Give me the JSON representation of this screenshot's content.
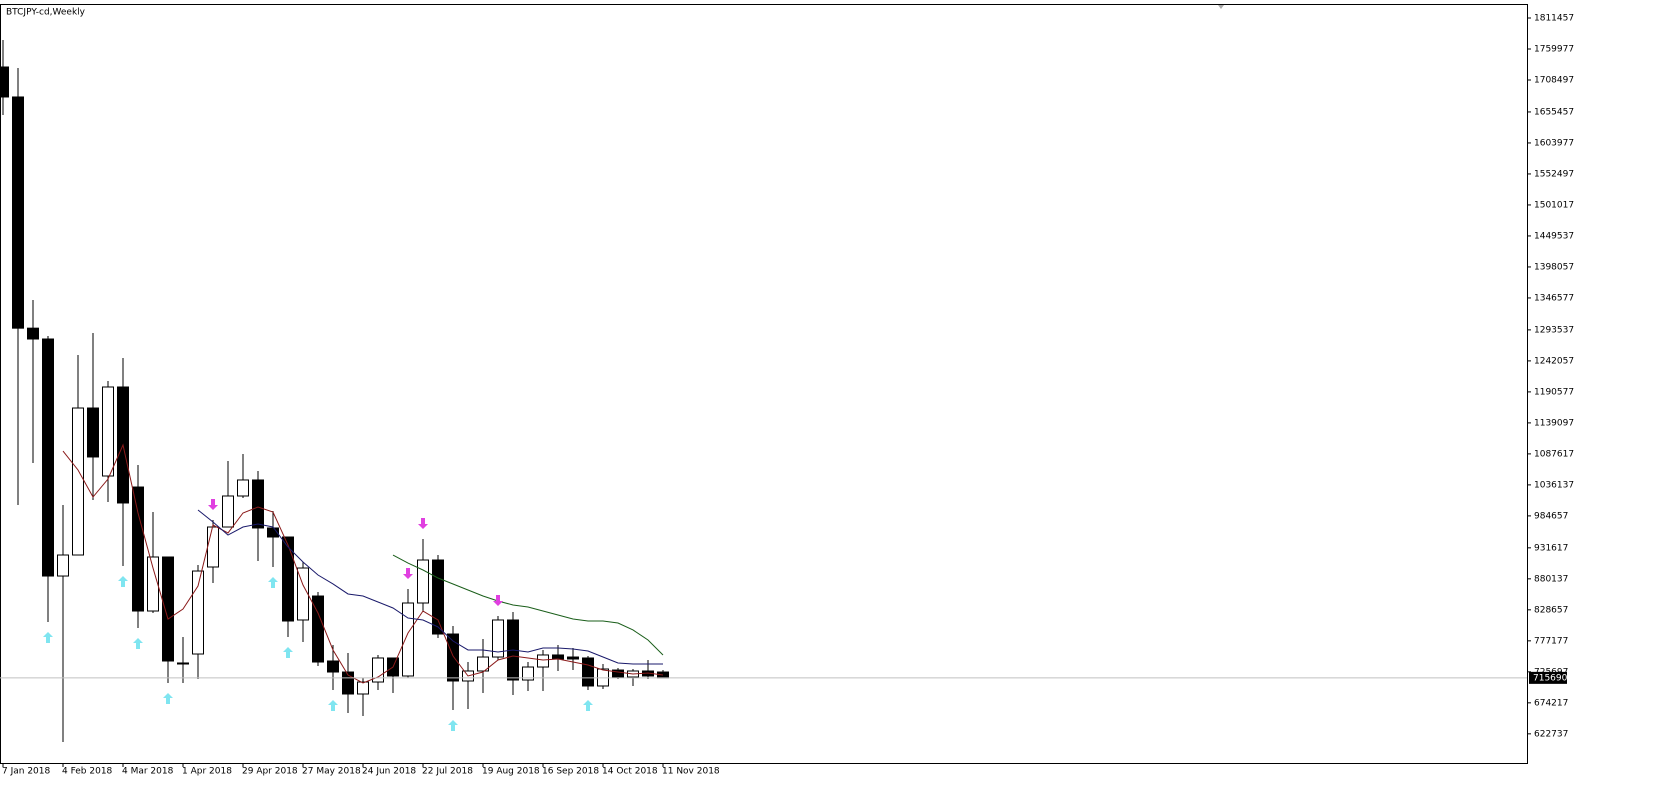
{
  "chart_data": {
    "type": "candlestick",
    "title": "BTCJPY-cd,Weekly",
    "categories": [
      "7 Jan 2018",
      null,
      null,
      null,
      "4 Feb 2018",
      null,
      null,
      null,
      "4 Mar 2018",
      null,
      null,
      null,
      "1 Apr 2018",
      null,
      null,
      null,
      "29 Apr 2018",
      null,
      null,
      null,
      "27 May 2018",
      null,
      null,
      null,
      "24 Jun 2018",
      null,
      null,
      null,
      "22 Jul 2018",
      null,
      null,
      null,
      "19 Aug 2018",
      null,
      null,
      null,
      "16 Sep 2018",
      null,
      null,
      null,
      "14 Oct 2018",
      null,
      null,
      null,
      "11 Nov 2018"
    ],
    "open": [
      1730100,
      1680300,
      1296400,
      1278400,
      884800,
      919700,
      1163800,
      1050900,
      1198700,
      1032600,
      826700,
      916400,
      740400,
      755300,
      899800,
      966200,
      1017700,
      1044300,
      964600,
      949600,
      811800,
      851600,
      743700,
      725400,
      688900,
      708800,
      748700,
      718800,
      840000,
      911400,
      788500,
      710500,
      727100,
      750300,
      811800,
      712100,
      733700,
      753700,
      750300,
      748700,
      702200,
      728700,
      717100,
      727100,
      725400
    ],
    "high": [
      1774900,
      1728400,
      1343200,
      1283400,
      1002700,
      1251800,
      1288400,
      1208700,
      1246900,
      1069200,
      991100,
      916400,
      783500,
      903100,
      977800,
      1075800,
      1087400,
      1059200,
      992800,
      949600,
      908100,
      858300,
      770300,
      757000,
      715500,
      753700,
      748700,
      863300,
      946300,
      919700,
      801800,
      742000,
      780200,
      818400,
      825100,
      742000,
      762000,
      770300,
      765300,
      752000,
      738700,
      732100,
      730400,
      745400,
      728700
    ],
    "low": [
      1650400,
      1002700,
      1072500,
      808500,
      609200,
      919700,
      1011000,
      1007700,
      901400,
      798500,
      823400,
      707200,
      707200,
      713800,
      873200,
      966200,
      1014400,
      909800,
      899800,
      783500,
      775200,
      735400,
      695500,
      657300,
      652400,
      695500,
      690600,
      715500,
      825100,
      781900,
      662300,
      664000,
      690600,
      745400,
      687200,
      693900,
      693900,
      727100,
      728700,
      695500,
      697200,
      713800,
      702200,
      713800,
      717100
    ],
    "close": [
      1680300,
      1296400,
      1278400,
      884800,
      919700,
      1163800,
      1082500,
      1198700,
      1006100,
      826700,
      916400,
      743700,
      738700,
      893100,
      966200,
      1017700,
      1044300,
      964600,
      949600,
      810100,
      898100,
      742000,
      725400,
      688900,
      708800,
      748700,
      718800,
      840000,
      911400,
      788500,
      710500,
      727100,
      750300,
      811800,
      712100,
      733700,
      753700,
      747000,
      747000,
      702200,
      730400,
      717100,
      727100,
      718800,
      715690
    ],
    "up_color": "#ffffff",
    "down_color": "#000000",
    "overlays": [
      {
        "color": "#8b1a1a",
        "values": [
          null,
          null,
          null,
          null,
          1092400,
          1060900,
          1016000,
          1045900,
          1102400,
          989500,
          898100,
          813400,
          830000,
          868200,
          969500,
          956300,
          989500,
          999400,
          991100,
          936300,
          869900,
          823400,
          762000,
          720400,
          707200,
          717100,
          733700,
          790200,
          826700,
          811800,
          752000,
          718800,
          725400,
          745400,
          752000,
          748700,
          745400,
          747000,
          742000,
          737100,
          728700,
          725400,
          722100,
          723800,
          720400
        ]
      },
      {
        "color": "#1a1a6b",
        "values": [
          null,
          null,
          null,
          null,
          null,
          null,
          null,
          null,
          null,
          null,
          null,
          null,
          null,
          994400,
          974500,
          952900,
          966200,
          971200,
          966200,
          933000,
          908100,
          886500,
          871600,
          855000,
          851600,
          841700,
          831700,
          815100,
          811800,
          800200,
          776900,
          762000,
          762000,
          758600,
          762000,
          758600,
          765300,
          765300,
          763600,
          760300,
          750300,
          740400,
          738700,
          738700,
          738700
        ]
      },
      {
        "color": "#1a5e1a",
        "values": [
          null,
          null,
          null,
          null,
          null,
          null,
          null,
          null,
          null,
          null,
          null,
          null,
          null,
          null,
          null,
          null,
          null,
          null,
          null,
          null,
          null,
          null,
          null,
          null,
          null,
          null,
          919700,
          906400,
          894800,
          881500,
          871600,
          861600,
          851600,
          843300,
          836700,
          833400,
          826700,
          820100,
          813400,
          810100,
          810100,
          806800,
          795200,
          778600,
          753700
        ]
      }
    ],
    "fractals_up": {
      "color": "#7fe5f0",
      "values": [
        null,
        null,
        null,
        808500,
        null,
        null,
        null,
        null,
        901400,
        798500,
        null,
        707200,
        null,
        null,
        null,
        null,
        null,
        null,
        899800,
        783500,
        null,
        null,
        695500,
        null,
        null,
        null,
        null,
        null,
        null,
        null,
        662300,
        null,
        null,
        null,
        null,
        null,
        null,
        null,
        null,
        695500,
        null,
        null,
        null,
        null,
        null
      ]
    },
    "fractals_down": {
      "color": "#e040e0",
      "values": [
        null,
        null,
        null,
        null,
        null,
        null,
        null,
        null,
        null,
        null,
        null,
        null,
        null,
        null,
        977800,
        null,
        null,
        null,
        null,
        null,
        null,
        null,
        null,
        null,
        null,
        null,
        null,
        863300,
        946300,
        null,
        null,
        null,
        null,
        818400,
        null,
        null,
        null,
        null,
        null,
        null,
        null,
        null,
        null,
        null,
        null
      ]
    },
    "last_price": 715690,
    "ylim": [
      574310,
      1834705
    ],
    "yticks": [
      1811457,
      1759977,
      1708497,
      1655457,
      1603977,
      1552497,
      1501017,
      1449537,
      1398057,
      1346577,
      1293537,
      1242057,
      1190577,
      1139097,
      1087617,
      1036137,
      984657,
      931617,
      880137,
      828657,
      777177,
      725697,
      674217,
      622737
    ]
  }
}
